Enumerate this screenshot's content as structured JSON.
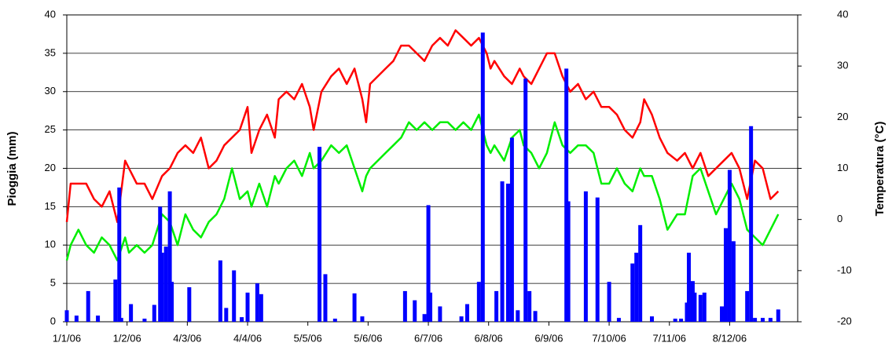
{
  "chart_data": {
    "type": "combo",
    "ylabel": "Pioggia (mm)",
    "y2label": "Temperatura (°C)",
    "xlim": [
      0,
      376
    ],
    "xticks": [
      {
        "value": 0,
        "label": "1/1/06"
      },
      {
        "value": 31,
        "label": "1/2/06"
      },
      {
        "value": 62,
        "label": "4/3/06"
      },
      {
        "value": 93,
        "label": "4/4/06"
      },
      {
        "value": 124,
        "label": "5/5/06"
      },
      {
        "value": 155,
        "label": "5/6/06"
      },
      {
        "value": 186,
        "label": "6/7/06"
      },
      {
        "value": 217,
        "label": "6/8/06"
      },
      {
        "value": 248,
        "label": "6/9/06"
      },
      {
        "value": 279,
        "label": "7/10/06"
      },
      {
        "value": 310,
        "label": "7/11/06"
      },
      {
        "value": 341,
        "label": "8/12/06"
      }
    ],
    "ylim": [
      0,
      40
    ],
    "yticks": [
      0,
      5,
      10,
      15,
      20,
      25,
      30,
      35,
      40
    ],
    "y2lim": [
      -20,
      40
    ],
    "y2ticks": [
      -20,
      -10,
      0,
      10,
      20,
      30,
      40
    ],
    "grid": true,
    "series": [
      {
        "type": "bar",
        "color": "#0000ff",
        "x": [
          0,
          5,
          11,
          16,
          25,
          27,
          28,
          33,
          40,
          45,
          48,
          49,
          51,
          53,
          54,
          63,
          79,
          82,
          86,
          90,
          93,
          98,
          100,
          130,
          133,
          138,
          148,
          152,
          174,
          179,
          184,
          186,
          187,
          192,
          203,
          206,
          212,
          214,
          221,
          224,
          227,
          229,
          232,
          236,
          238,
          241,
          257,
          258,
          267,
          273,
          279,
          284,
          291,
          293,
          295,
          301,
          313,
          316,
          319,
          320,
          322,
          323,
          326,
          328,
          337,
          339,
          341,
          343,
          350,
          352,
          354,
          358,
          362,
          366
        ],
        "values": [
          1.5,
          0.8,
          4,
          0.8,
          5.5,
          17.5,
          0.5,
          2.3,
          0.4,
          2.2,
          15,
          9,
          9.8,
          17,
          5.2,
          4.5,
          8,
          1.8,
          6.7,
          0.6,
          3.8,
          5,
          3.6,
          22.8,
          6.2,
          0.4,
          3.7,
          0.7,
          4,
          2.8,
          1,
          15.2,
          3.8,
          2,
          0.7,
          2.3,
          5.2,
          37.7,
          4,
          18.3,
          18,
          24,
          1.5,
          31.7,
          4,
          1.4,
          33,
          15.7,
          17,
          16.2,
          5.2,
          0.5,
          7.6,
          9,
          12.6,
          0.7,
          0.4,
          0.4,
          2.5,
          9,
          5.3,
          3.8,
          3.5,
          3.8,
          2,
          12.2,
          19.8,
          10.5,
          4,
          25.5,
          0.5,
          0.5,
          0.5,
          1.6
        ]
      },
      {
        "type": "line",
        "axis": "y2",
        "color": "#ff0000",
        "x": [
          0,
          2,
          6,
          10,
          14,
          18,
          22,
          26,
          30,
          32,
          36,
          40,
          44,
          49,
          53,
          57,
          61,
          65,
          69,
          73,
          77,
          81,
          85,
          89,
          93,
          95,
          99,
          103,
          107,
          109,
          113,
          117,
          121,
          125,
          127,
          131,
          136,
          140,
          144,
          148,
          152,
          154,
          156,
          160,
          164,
          168,
          172,
          176,
          180,
          184,
          188,
          192,
          196,
          200,
          204,
          208,
          212,
          216,
          218,
          220,
          225,
          229,
          233,
          235,
          239,
          243,
          247,
          251,
          255,
          259,
          263,
          267,
          271,
          275,
          279,
          283,
          287,
          291,
          295,
          297,
          301,
          305,
          309,
          314,
          318,
          322,
          326,
          330,
          334,
          338,
          342,
          346,
          350,
          354,
          358,
          362,
          366
        ],
        "values": [
          -0.5,
          7,
          7,
          7,
          4,
          2.5,
          5.5,
          -0.5,
          11.5,
          10,
          7,
          7,
          4,
          8.5,
          10,
          13,
          14.5,
          13,
          16,
          10,
          11.5,
          14.5,
          16,
          17.5,
          22,
          13,
          17.5,
          20.5,
          16,
          23.5,
          25,
          23.5,
          26.5,
          22,
          17.5,
          25,
          28,
          29.5,
          26.5,
          29.5,
          23.5,
          19,
          26.5,
          28,
          29.5,
          31,
          34,
          34,
          32.5,
          31,
          34,
          35.5,
          34,
          37,
          35.5,
          34,
          35.5,
          32.5,
          29.5,
          31,
          28,
          26.5,
          29.5,
          28,
          26.5,
          29.5,
          32.5,
          32.5,
          28,
          25,
          26.5,
          23.5,
          25,
          22,
          22,
          20.5,
          17.5,
          16,
          19,
          23.5,
          20.5,
          16,
          13,
          11.5,
          13,
          10,
          13,
          8.5,
          10,
          11.5,
          13,
          10,
          4,
          11.5,
          10,
          4,
          5.5
        ]
      },
      {
        "type": "line",
        "axis": "y2",
        "color": "#00ee00",
        "x": [
          0,
          2,
          6,
          10,
          14,
          18,
          22,
          26,
          30,
          32,
          36,
          40,
          44,
          49,
          53,
          57,
          61,
          65,
          69,
          73,
          77,
          81,
          85,
          89,
          93,
          95,
          99,
          103,
          107,
          109,
          113,
          117,
          121,
          125,
          127,
          131,
          136,
          140,
          144,
          148,
          152,
          154,
          156,
          160,
          164,
          168,
          172,
          176,
          180,
          184,
          188,
          192,
          196,
          200,
          204,
          208,
          212,
          216,
          218,
          220,
          225,
          229,
          233,
          235,
          239,
          243,
          247,
          251,
          255,
          259,
          263,
          267,
          271,
          275,
          279,
          283,
          287,
          291,
          295,
          297,
          301,
          305,
          309,
          314,
          318,
          322,
          326,
          330,
          334,
          338,
          342,
          346,
          350,
          354,
          358,
          362,
          366
        ],
        "values": [
          -8,
          -5,
          -2,
          -5,
          -6.5,
          -3.5,
          -5,
          -8,
          -3.5,
          -6.5,
          -5,
          -6.5,
          -5,
          1,
          -0.5,
          -5,
          1,
          -2,
          -3.5,
          -0.5,
          1,
          4,
          10,
          4,
          5.5,
          2.5,
          7,
          2.5,
          8.5,
          7,
          10,
          11.5,
          8.5,
          13,
          10,
          11.5,
          14.5,
          13,
          14.5,
          10,
          5.5,
          8.5,
          10,
          11.5,
          13,
          14.5,
          16,
          19,
          17.5,
          19,
          17.5,
          19,
          19,
          17.5,
          19,
          17.5,
          20.5,
          14.5,
          13,
          14.5,
          11.5,
          16,
          17.5,
          14.5,
          13,
          10,
          13,
          19,
          14.5,
          13,
          14.5,
          14.5,
          13,
          7,
          7,
          10,
          7,
          5.5,
          10,
          8.5,
          8.5,
          4,
          -2,
          1,
          1,
          8.5,
          10,
          5.5,
          1,
          4,
          7,
          4,
          -2,
          -3.5,
          -5,
          -2,
          1
        ]
      }
    ]
  }
}
